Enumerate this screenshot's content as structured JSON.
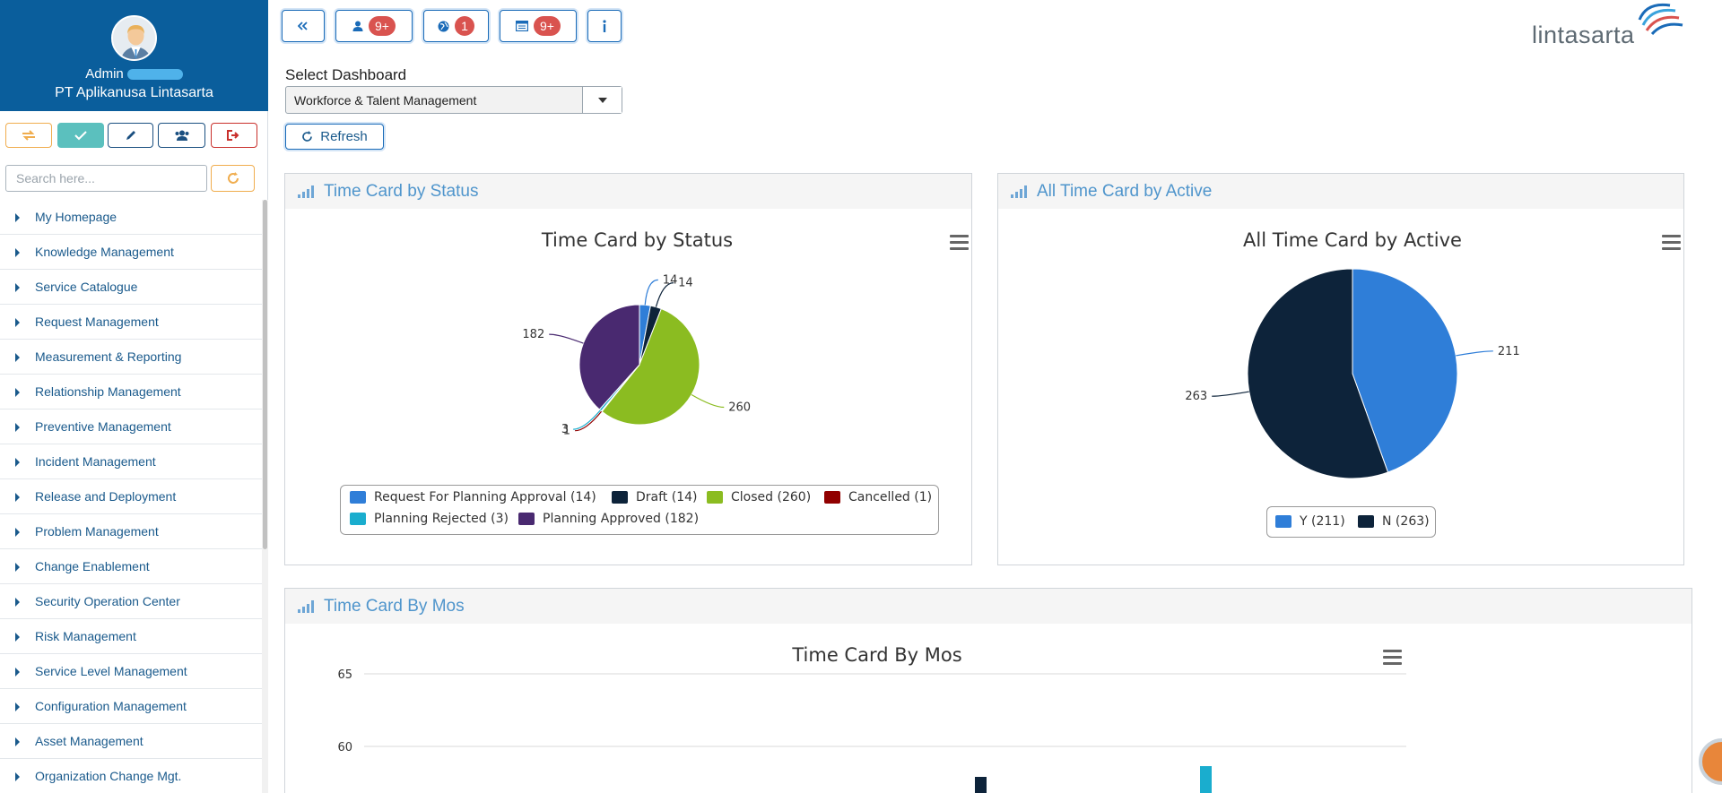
{
  "sidebar": {
    "user_name": "Admin",
    "company": "PT Aplikanusa Lintasarta",
    "search_placeholder": "Search here...",
    "menu": [
      {
        "label": "My Homepage"
      },
      {
        "label": "Knowledge Management"
      },
      {
        "label": "Service Catalogue"
      },
      {
        "label": "Request Management"
      },
      {
        "label": "Measurement & Reporting"
      },
      {
        "label": "Relationship Management"
      },
      {
        "label": "Preventive Management"
      },
      {
        "label": "Incident Management"
      },
      {
        "label": "Release and Deployment"
      },
      {
        "label": "Problem Management"
      },
      {
        "label": "Change Enablement"
      },
      {
        "label": "Security Operation Center"
      },
      {
        "label": "Risk Management"
      },
      {
        "label": "Service Level Management"
      },
      {
        "label": "Configuration Management"
      },
      {
        "label": "Asset Management"
      },
      {
        "label": "Organization Change Mgt."
      }
    ]
  },
  "topbar": {
    "badges": {
      "users": "9+",
      "globe": "1",
      "calendar": "9+"
    },
    "logo_text": "lintasarta"
  },
  "dashboard": {
    "select_label": "Select Dashboard",
    "selected": "Workforce & Talent Management",
    "refresh_label": "Refresh"
  },
  "panels": {
    "status": {
      "header": "Time Card by Status"
    },
    "active": {
      "header": "All Time Card by Active"
    },
    "mos": {
      "header": "Time Card By Mos"
    }
  },
  "colors": {
    "brand_blue": "#0a5e9c",
    "link_blue": "#1a5a8c",
    "badge_red": "#d9534f"
  },
  "chart_data": [
    {
      "type": "pie",
      "title": "Time Card by Status",
      "series": [
        {
          "name": "Request For Planning Approval",
          "value": 14,
          "color": "#2f7ed8"
        },
        {
          "name": "Draft",
          "value": 14,
          "color": "#0d233a"
        },
        {
          "name": "Closed",
          "value": 260,
          "color": "#8bbc21"
        },
        {
          "name": "Cancelled",
          "value": 1,
          "color": "#910000"
        },
        {
          "name": "Planning Rejected",
          "value": 3,
          "color": "#1aadce"
        },
        {
          "name": "Planning Approved",
          "value": 182,
          "color": "#492970"
        }
      ],
      "legend_position": "bottom"
    },
    {
      "type": "pie",
      "title": "All Time Card by Active",
      "series": [
        {
          "name": "Y",
          "value": 211,
          "color": "#2f7ed8"
        },
        {
          "name": "N",
          "value": 263,
          "color": "#0d233a"
        }
      ],
      "legend_position": "bottom"
    },
    {
      "type": "bar",
      "title": "Time Card By Mos",
      "y_ticks": [
        65,
        60
      ],
      "grid": true
    }
  ]
}
